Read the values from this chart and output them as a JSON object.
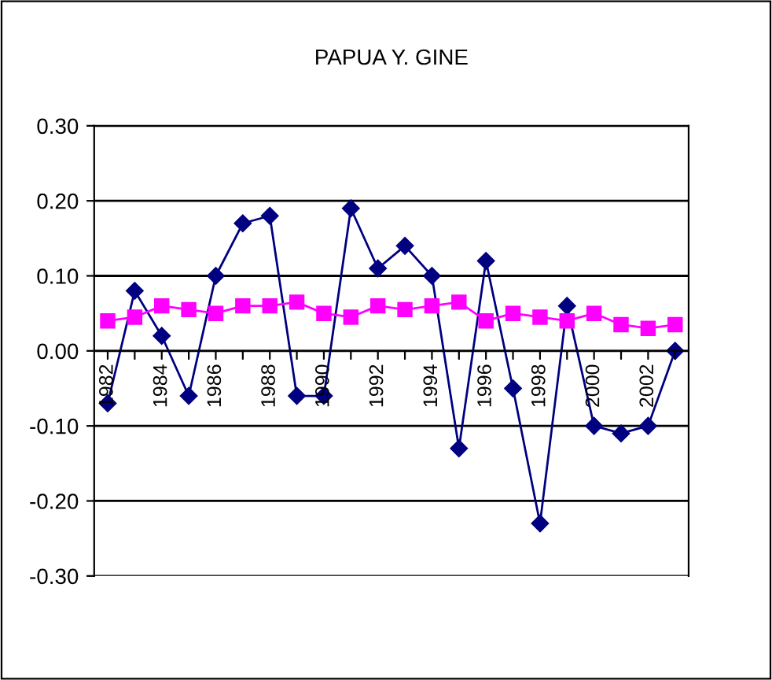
{
  "chart_data": {
    "type": "line",
    "title": "PAPUA Y. GINE",
    "categories": [
      "1982",
      null,
      "1984",
      null,
      "1986",
      null,
      "1988",
      null,
      "1990",
      null,
      "1992",
      null,
      "1994",
      null,
      "1996",
      null,
      "1998",
      null,
      "2000",
      null,
      "2002",
      null
    ],
    "series": [
      {
        "color": "#000080",
        "marker": "diamond",
        "values": [
          -0.07,
          0.08,
          0.02,
          -0.06,
          0.1,
          0.17,
          0.18,
          -0.06,
          -0.06,
          0.19,
          0.11,
          0.14,
          0.1,
          -0.13,
          0.12,
          -0.05,
          -0.23,
          0.06,
          -0.1,
          -0.11,
          -0.1,
          0.0
        ]
      },
      {
        "color": "#ff00ff",
        "marker": "square",
        "values": [
          0.04,
          0.045,
          0.06,
          0.055,
          0.05,
          0.06,
          0.06,
          0.065,
          0.05,
          0.045,
          0.06,
          0.055,
          0.06,
          0.065,
          0.04,
          0.05,
          0.045,
          0.04,
          0.05,
          0.035,
          0.03,
          0.035
        ]
      }
    ],
    "ylim": [
      -0.3,
      0.3
    ],
    "yticks": [
      {
        "value": -0.3,
        "label": "-0.30"
      },
      {
        "value": -0.2,
        "label": "-0.20"
      },
      {
        "value": -0.1,
        "label": "-0.10"
      },
      {
        "value": 0,
        "label": "0.00"
      },
      {
        "value": 0.1,
        "label": "0.10"
      },
      {
        "value": 0.2,
        "label": "0.20"
      },
      {
        "value": 0.3,
        "label": "0.30"
      }
    ],
    "grid": "y",
    "legend": false,
    "line_style": "solid"
  }
}
